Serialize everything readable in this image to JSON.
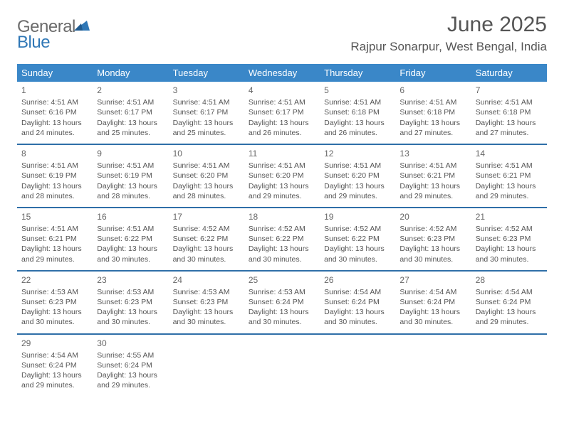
{
  "logo": {
    "text_gray": "General",
    "text_blue": "Blue"
  },
  "title": "June 2025",
  "location": "Rajpur Sonarpur, West Bengal, India",
  "colors": {
    "header_bg": "#3a87c8",
    "header_text": "#ffffff",
    "row_border": "#2f6fa8",
    "body_text": "#555555",
    "logo_gray": "#6b6b6b",
    "logo_blue": "#2f77b6",
    "background": "#ffffff"
  },
  "weekdays": [
    "Sunday",
    "Monday",
    "Tuesday",
    "Wednesday",
    "Thursday",
    "Friday",
    "Saturday"
  ],
  "weeks": [
    [
      {
        "n": "1",
        "sr": "4:51 AM",
        "ss": "6:16 PM",
        "dl": "13 hours and 24 minutes."
      },
      {
        "n": "2",
        "sr": "4:51 AM",
        "ss": "6:17 PM",
        "dl": "13 hours and 25 minutes."
      },
      {
        "n": "3",
        "sr": "4:51 AM",
        "ss": "6:17 PM",
        "dl": "13 hours and 25 minutes."
      },
      {
        "n": "4",
        "sr": "4:51 AM",
        "ss": "6:17 PM",
        "dl": "13 hours and 26 minutes."
      },
      {
        "n": "5",
        "sr": "4:51 AM",
        "ss": "6:18 PM",
        "dl": "13 hours and 26 minutes."
      },
      {
        "n": "6",
        "sr": "4:51 AM",
        "ss": "6:18 PM",
        "dl": "13 hours and 27 minutes."
      },
      {
        "n": "7",
        "sr": "4:51 AM",
        "ss": "6:18 PM",
        "dl": "13 hours and 27 minutes."
      }
    ],
    [
      {
        "n": "8",
        "sr": "4:51 AM",
        "ss": "6:19 PM",
        "dl": "13 hours and 28 minutes."
      },
      {
        "n": "9",
        "sr": "4:51 AM",
        "ss": "6:19 PM",
        "dl": "13 hours and 28 minutes."
      },
      {
        "n": "10",
        "sr": "4:51 AM",
        "ss": "6:20 PM",
        "dl": "13 hours and 28 minutes."
      },
      {
        "n": "11",
        "sr": "4:51 AM",
        "ss": "6:20 PM",
        "dl": "13 hours and 29 minutes."
      },
      {
        "n": "12",
        "sr": "4:51 AM",
        "ss": "6:20 PM",
        "dl": "13 hours and 29 minutes."
      },
      {
        "n": "13",
        "sr": "4:51 AM",
        "ss": "6:21 PM",
        "dl": "13 hours and 29 minutes."
      },
      {
        "n": "14",
        "sr": "4:51 AM",
        "ss": "6:21 PM",
        "dl": "13 hours and 29 minutes."
      }
    ],
    [
      {
        "n": "15",
        "sr": "4:51 AM",
        "ss": "6:21 PM",
        "dl": "13 hours and 29 minutes."
      },
      {
        "n": "16",
        "sr": "4:51 AM",
        "ss": "6:22 PM",
        "dl": "13 hours and 30 minutes."
      },
      {
        "n": "17",
        "sr": "4:52 AM",
        "ss": "6:22 PM",
        "dl": "13 hours and 30 minutes."
      },
      {
        "n": "18",
        "sr": "4:52 AM",
        "ss": "6:22 PM",
        "dl": "13 hours and 30 minutes."
      },
      {
        "n": "19",
        "sr": "4:52 AM",
        "ss": "6:22 PM",
        "dl": "13 hours and 30 minutes."
      },
      {
        "n": "20",
        "sr": "4:52 AM",
        "ss": "6:23 PM",
        "dl": "13 hours and 30 minutes."
      },
      {
        "n": "21",
        "sr": "4:52 AM",
        "ss": "6:23 PM",
        "dl": "13 hours and 30 minutes."
      }
    ],
    [
      {
        "n": "22",
        "sr": "4:53 AM",
        "ss": "6:23 PM",
        "dl": "13 hours and 30 minutes."
      },
      {
        "n": "23",
        "sr": "4:53 AM",
        "ss": "6:23 PM",
        "dl": "13 hours and 30 minutes."
      },
      {
        "n": "24",
        "sr": "4:53 AM",
        "ss": "6:23 PM",
        "dl": "13 hours and 30 minutes."
      },
      {
        "n": "25",
        "sr": "4:53 AM",
        "ss": "6:24 PM",
        "dl": "13 hours and 30 minutes."
      },
      {
        "n": "26",
        "sr": "4:54 AM",
        "ss": "6:24 PM",
        "dl": "13 hours and 30 minutes."
      },
      {
        "n": "27",
        "sr": "4:54 AM",
        "ss": "6:24 PM",
        "dl": "13 hours and 30 minutes."
      },
      {
        "n": "28",
        "sr": "4:54 AM",
        "ss": "6:24 PM",
        "dl": "13 hours and 29 minutes."
      }
    ],
    [
      {
        "n": "29",
        "sr": "4:54 AM",
        "ss": "6:24 PM",
        "dl": "13 hours and 29 minutes."
      },
      {
        "n": "30",
        "sr": "4:55 AM",
        "ss": "6:24 PM",
        "dl": "13 hours and 29 minutes."
      },
      null,
      null,
      null,
      null,
      null
    ]
  ],
  "labels": {
    "sunrise": "Sunrise: ",
    "sunset": "Sunset: ",
    "daylight": "Daylight: "
  }
}
